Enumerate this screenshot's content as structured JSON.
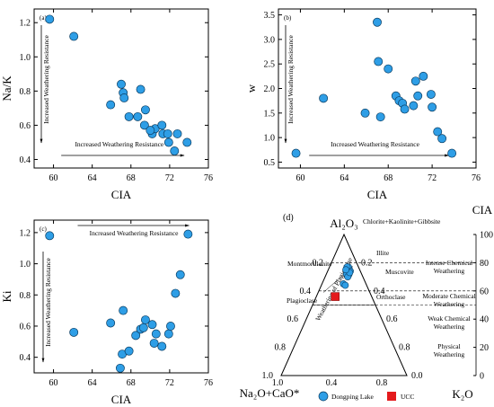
{
  "chart_data": [
    {
      "id": "a",
      "type": "scatter",
      "panel_label": "(a)",
      "xlabel": "CIA",
      "ylabel": "Na/K",
      "xlim": [
        58,
        76
      ],
      "ylim": [
        0.35,
        1.28
      ],
      "xticks": [
        "60",
        "64",
        "68",
        "72",
        "76"
      ],
      "yticks": [
        "0.4",
        "0.6",
        "0.8",
        "1.0",
        "1.2"
      ],
      "ytick_values": [
        0.4,
        0.6,
        0.8,
        1.0,
        1.2
      ],
      "points": [
        [
          59.6,
          1.22
        ],
        [
          62.1,
          1.12
        ],
        [
          65.9,
          0.72
        ],
        [
          67.0,
          0.84
        ],
        [
          67.2,
          0.79
        ],
        [
          67.3,
          0.76
        ],
        [
          67.8,
          0.65
        ],
        [
          68.7,
          0.65
        ],
        [
          69.0,
          0.81
        ],
        [
          69.5,
          0.69
        ],
        [
          69.4,
          0.6
        ],
        [
          70.2,
          0.55
        ],
        [
          70.5,
          0.58
        ],
        [
          71.2,
          0.6
        ],
        [
          71.3,
          0.55
        ],
        [
          71.8,
          0.55
        ],
        [
          71.9,
          0.5
        ],
        [
          72.5,
          0.45
        ],
        [
          72.8,
          0.55
        ],
        [
          73.8,
          0.5
        ],
        [
          70.0,
          0.57
        ]
      ],
      "annotations": {
        "vertical": "Increased Weathering Resistance",
        "horizontal": "Increased Weathering Resistance"
      }
    },
    {
      "id": "b",
      "type": "scatter",
      "panel_label": "(b)",
      "xlabel": "CIA",
      "ylabel": "w",
      "xlim": [
        58,
        76
      ],
      "ylim": [
        0.38,
        3.62
      ],
      "xticks": [
        "60",
        "64",
        "68",
        "72",
        "76"
      ],
      "yticks": [
        "0.5",
        "1.0",
        "1.5",
        "2.0",
        "2.5",
        "3.0",
        "3.5"
      ],
      "ytick_values": [
        0.5,
        1.0,
        1.5,
        2.0,
        2.5,
        3.0,
        3.5
      ],
      "points": [
        [
          59.6,
          0.68
        ],
        [
          62.1,
          1.8
        ],
        [
          65.9,
          1.5
        ],
        [
          67.0,
          3.35
        ],
        [
          67.1,
          2.55
        ],
        [
          67.3,
          1.42
        ],
        [
          68.0,
          2.4
        ],
        [
          68.7,
          1.85
        ],
        [
          69.0,
          1.75
        ],
        [
          69.3,
          1.7
        ],
        [
          69.5,
          1.58
        ],
        [
          70.3,
          1.65
        ],
        [
          70.5,
          2.15
        ],
        [
          70.7,
          1.85
        ],
        [
          71.2,
          2.25
        ],
        [
          71.9,
          1.88
        ],
        [
          72.0,
          1.62
        ],
        [
          72.5,
          1.12
        ],
        [
          72.9,
          0.98
        ],
        [
          73.8,
          0.68
        ]
      ],
      "annotations": {
        "vertical": "Increased Weathering Resistance",
        "horizontal": "Increased Weathering Resistance"
      }
    },
    {
      "id": "c",
      "type": "scatter",
      "panel_label": "(c)",
      "xlabel": "CIA",
      "ylabel": "Ki",
      "xlim": [
        58,
        76
      ],
      "ylim": [
        0.3,
        1.28
      ],
      "xticks": [
        "60",
        "64",
        "68",
        "72",
        "76"
      ],
      "yticks": [
        "0.4",
        "0.6",
        "0.8",
        "1.0",
        "1.2"
      ],
      "ytick_values": [
        0.4,
        0.6,
        0.8,
        1.0,
        1.2
      ],
      "points": [
        [
          59.6,
          1.18
        ],
        [
          62.1,
          0.56
        ],
        [
          65.9,
          0.62
        ],
        [
          66.9,
          0.33
        ],
        [
          67.1,
          0.42
        ],
        [
          67.2,
          0.7
        ],
        [
          67.8,
          0.44
        ],
        [
          68.5,
          0.54
        ],
        [
          69.0,
          0.58
        ],
        [
          69.3,
          0.59
        ],
        [
          69.5,
          0.64
        ],
        [
          70.2,
          0.61
        ],
        [
          70.4,
          0.49
        ],
        [
          70.6,
          0.55
        ],
        [
          71.2,
          0.47
        ],
        [
          71.9,
          0.55
        ],
        [
          72.1,
          0.6
        ],
        [
          72.6,
          0.81
        ],
        [
          73.1,
          0.93
        ],
        [
          73.9,
          1.19
        ]
      ],
      "annotations": {
        "vertical": "Increased Weathering Resistance",
        "horizontal": "Increased Weathering Resistance"
      }
    },
    {
      "id": "d",
      "type": "scatter",
      "subtype": "ternary",
      "panel_label": "(d)",
      "apices": {
        "top": "Al₂O₃",
        "left": "Na₂O+CaO*",
        "right": "K₂O"
      },
      "right_axis": {
        "label": "CIA",
        "range": [
          0,
          100
        ],
        "ticks": [
          "0",
          "20",
          "40",
          "60",
          "80",
          "100"
        ]
      },
      "edge_ticks": [
        "0.2",
        "0.4",
        "0.6",
        "0.8",
        "1.0",
        "0.0"
      ],
      "minerals": [
        "Chlorite+Kaolinite+Gibbsite",
        "Illite",
        "Montmorillonite",
        "Muscovite",
        "Plagioclase",
        "Orthoclase"
      ],
      "trend_label": "Weathering of Plagioclase",
      "weathering_zones": [
        "Intense Chemical Weathering",
        "Moderate Chemical Weathering",
        "Weak Chemical Weathering",
        "Physical Weathering"
      ],
      "legend": [
        {
          "label": "Dongping Lake",
          "color": "#2e9ee6"
        },
        {
          "label": "UCC",
          "color": "#e41a1c"
        }
      ],
      "points": [
        [
          0.74,
          0.1,
          0.16
        ],
        [
          0.75,
          0.09,
          0.16
        ],
        [
          0.76,
          0.08,
          0.16
        ],
        [
          0.73,
          0.1,
          0.17
        ],
        [
          0.74,
          0.09,
          0.17
        ],
        [
          0.72,
          0.1,
          0.18
        ],
        [
          0.76,
          0.09,
          0.15
        ],
        [
          0.77,
          0.08,
          0.15
        ],
        [
          0.73,
          0.11,
          0.16
        ],
        [
          0.75,
          0.1,
          0.15
        ],
        [
          0.71,
          0.11,
          0.18
        ],
        [
          0.74,
          0.08,
          0.18
        ],
        [
          0.72,
          0.12,
          0.16
        ],
        [
          0.76,
          0.1,
          0.14
        ],
        [
          0.7,
          0.12,
          0.18
        ],
        [
          0.73,
          0.09,
          0.18
        ],
        [
          0.77,
          0.09,
          0.14
        ],
        [
          0.65,
          0.18,
          0.17
        ],
        [
          0.64,
          0.17,
          0.19
        ],
        [
          0.75,
          0.11,
          0.14
        ]
      ],
      "ucc": [
        0.56,
        0.29,
        0.15
      ]
    }
  ]
}
